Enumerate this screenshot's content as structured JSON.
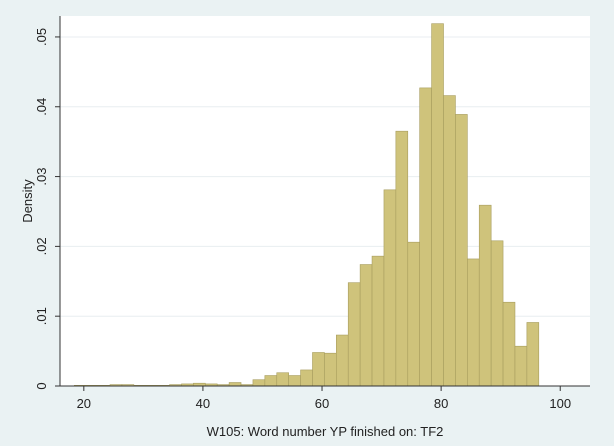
{
  "chart_data": {
    "type": "bar",
    "title": "",
    "xlabel": "W105: Word number YP finished on: TF2",
    "ylabel": "Density",
    "xlim": [
      16,
      105
    ],
    "ylim": [
      0,
      0.053
    ],
    "x_ticks": [
      20,
      40,
      60,
      80,
      100
    ],
    "x_tick_labels": [
      "20",
      "40",
      "60",
      "80",
      "100"
    ],
    "y_ticks": [
      0,
      0.01,
      0.02,
      0.03,
      0.04,
      0.05
    ],
    "y_tick_labels": [
      "0",
      ".01",
      ".02",
      ".03",
      ".04",
      ".05"
    ],
    "grid": true,
    "bar_color": "#cfc37b",
    "bar_edge_color": "#a79d5e",
    "plot_background": "#ffffff",
    "outer_background": "#eaf2f3",
    "bins": [
      {
        "start": 18.4,
        "end": 20.4,
        "density": 0.0001
      },
      {
        "start": 20.4,
        "end": 22.4,
        "density": 0.0001
      },
      {
        "start": 22.4,
        "end": 24.4,
        "density": 0.0001
      },
      {
        "start": 24.4,
        "end": 26.4,
        "density": 0.0002
      },
      {
        "start": 26.4,
        "end": 28.4,
        "density": 0.0002
      },
      {
        "start": 28.4,
        "end": 30.4,
        "density": 0.0001
      },
      {
        "start": 30.4,
        "end": 32.4,
        "density": 0.0001
      },
      {
        "start": 32.4,
        "end": 34.4,
        "density": 0.0001
      },
      {
        "start": 34.4,
        "end": 36.4,
        "density": 0.0002
      },
      {
        "start": 36.4,
        "end": 38.4,
        "density": 0.0003
      },
      {
        "start": 38.4,
        "end": 40.4,
        "density": 0.0004
      },
      {
        "start": 40.4,
        "end": 42.4,
        "density": 0.0003
      },
      {
        "start": 42.4,
        "end": 44.4,
        "density": 0.0002
      },
      {
        "start": 44.4,
        "end": 46.4,
        "density": 0.0005
      },
      {
        "start": 46.4,
        "end": 48.4,
        "density": 0.0002
      },
      {
        "start": 48.4,
        "end": 50.4,
        "density": 0.0009
      },
      {
        "start": 50.4,
        "end": 52.4,
        "density": 0.0015
      },
      {
        "start": 52.4,
        "end": 54.4,
        "density": 0.0019
      },
      {
        "start": 54.4,
        "end": 56.4,
        "density": 0.0015
      },
      {
        "start": 56.4,
        "end": 58.4,
        "density": 0.0023
      },
      {
        "start": 58.4,
        "end": 60.4,
        "density": 0.0048
      },
      {
        "start": 60.4,
        "end": 62.4,
        "density": 0.0047
      },
      {
        "start": 62.4,
        "end": 64.4,
        "density": 0.0073
      },
      {
        "start": 64.4,
        "end": 66.4,
        "density": 0.0148
      },
      {
        "start": 66.4,
        "end": 68.4,
        "density": 0.0174
      },
      {
        "start": 68.4,
        "end": 70.4,
        "density": 0.0186
      },
      {
        "start": 70.4,
        "end": 72.4,
        "density": 0.0281
      },
      {
        "start": 72.4,
        "end": 74.4,
        "density": 0.0365
      },
      {
        "start": 74.4,
        "end": 76.4,
        "density": 0.0206
      },
      {
        "start": 76.4,
        "end": 78.4,
        "density": 0.0427
      },
      {
        "start": 78.4,
        "end": 80.4,
        "density": 0.0519
      },
      {
        "start": 80.4,
        "end": 82.4,
        "density": 0.0416
      },
      {
        "start": 82.4,
        "end": 84.4,
        "density": 0.0389
      },
      {
        "start": 84.4,
        "end": 86.4,
        "density": 0.0182
      },
      {
        "start": 86.4,
        "end": 88.4,
        "density": 0.0259
      },
      {
        "start": 88.4,
        "end": 90.4,
        "density": 0.0208
      },
      {
        "start": 90.4,
        "end": 92.4,
        "density": 0.012
      },
      {
        "start": 92.4,
        "end": 94.4,
        "density": 0.0057
      },
      {
        "start": 94.4,
        "end": 96.4,
        "density": 0.0091
      }
    ]
  }
}
